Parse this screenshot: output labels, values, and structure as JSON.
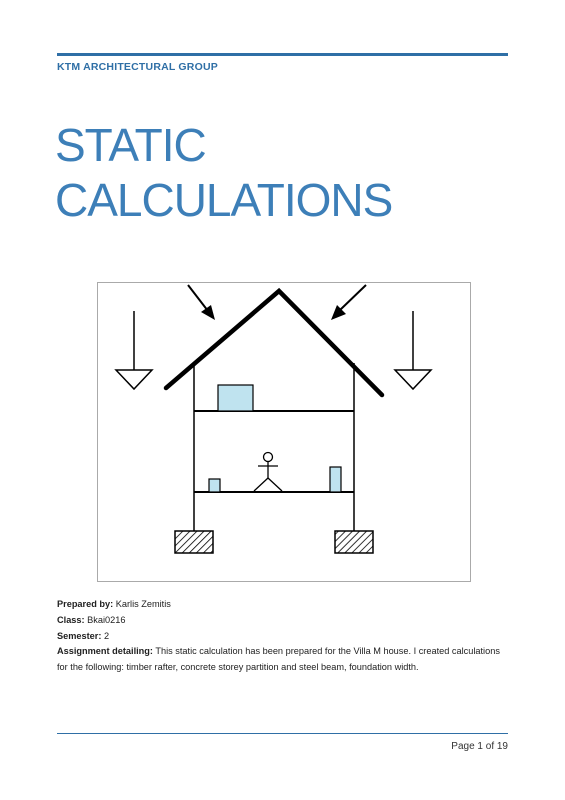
{
  "header": {
    "company": "KTM ARCHITECTURAL GROUP"
  },
  "title": {
    "line1": "STATIC",
    "line2": "CALCULATIONS"
  },
  "info": {
    "prepared_by_label": "Prepared by:",
    "prepared_by_value": "Karlis Zemitis",
    "class_label": "Class:",
    "class_value": "Bkai0216",
    "semester_label": "Semester:",
    "semester_value": "2",
    "assignment_label": "Assignment detailing:",
    "assignment_value": "This static calculation has been prepared for the Villa M house. I created calculations for the following: timber rafter, concrete storey partition and steel beam, foundation width."
  },
  "footer": {
    "page": "Page 1 of 19"
  },
  "colors": {
    "accent": "#2f6fa6",
    "title": "#3d7fb8",
    "furniture": "#bfe3ef"
  },
  "figure": {
    "icon": "house-load-diagram-icon"
  }
}
